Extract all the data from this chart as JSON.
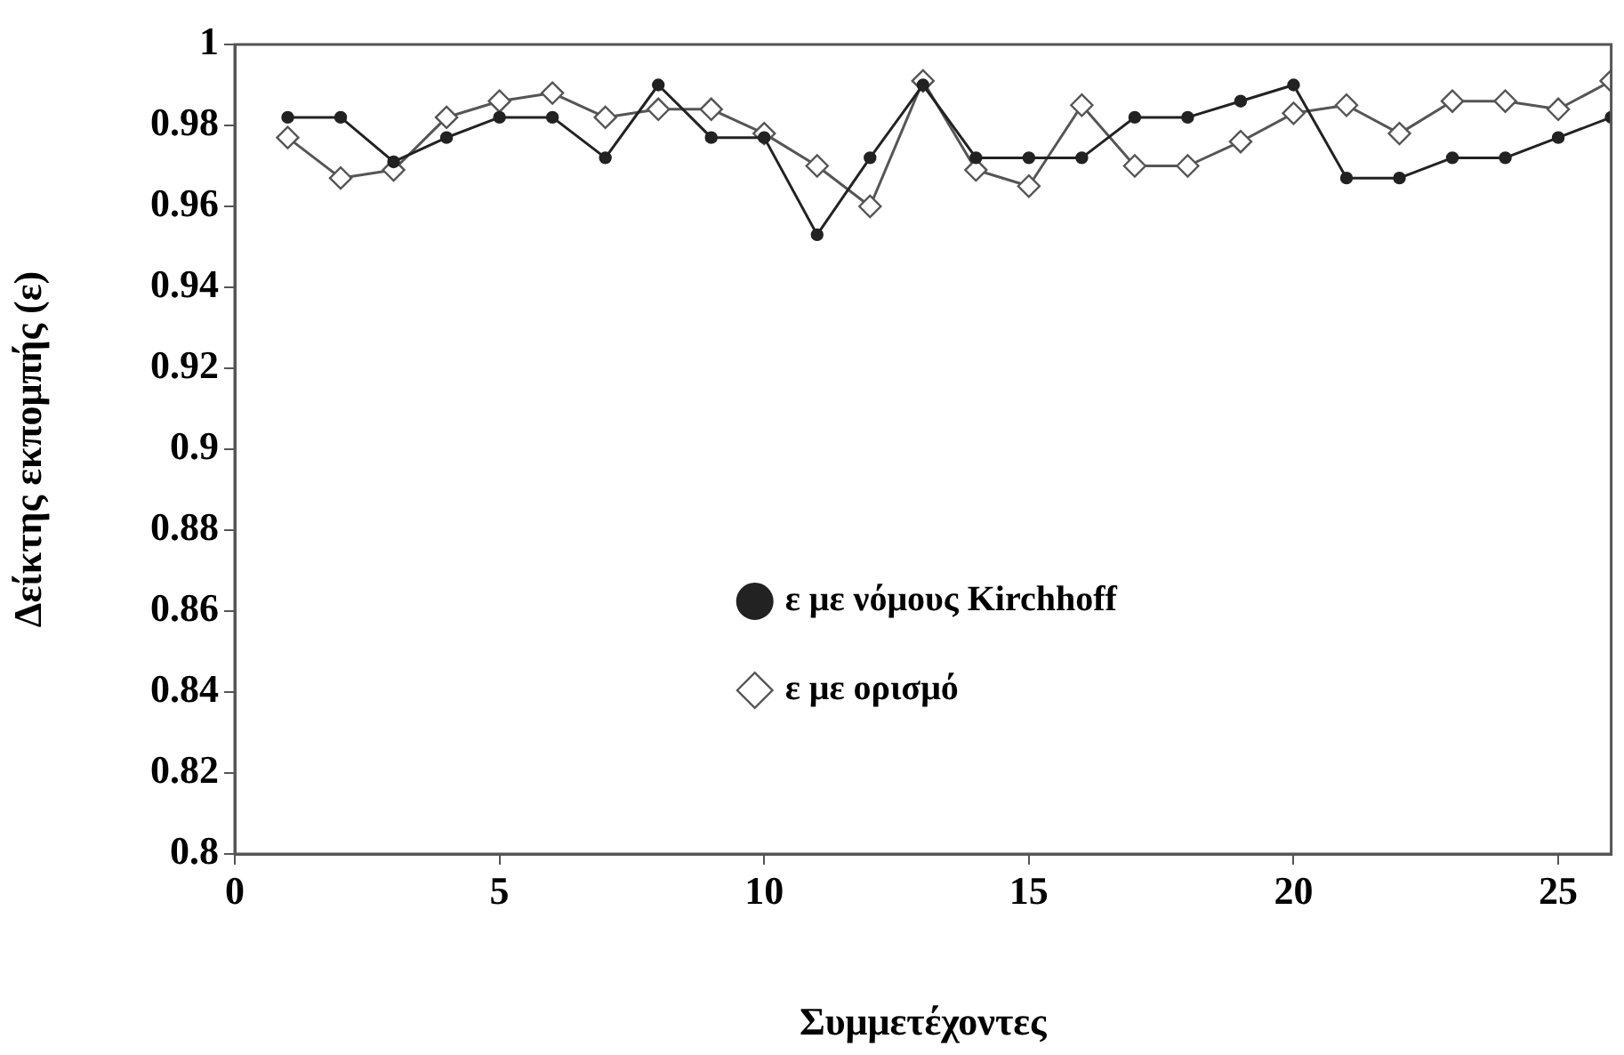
{
  "chart_data": {
    "type": "line",
    "xlabel": "Συμμετέχοντες",
    "ylabel": "Δείκτης εκπομπής (ε)",
    "x": [
      1,
      2,
      3,
      4,
      5,
      6,
      7,
      8,
      9,
      10,
      11,
      12,
      13,
      14,
      15,
      16,
      17,
      18,
      19,
      20,
      21,
      22,
      23,
      24,
      25,
      26
    ],
    "series": [
      {
        "name": "ε με ορισμό",
        "color": "#555555",
        "marker": "diamond",
        "values": [
          0.977,
          0.967,
          0.969,
          0.982,
          0.986,
          0.988,
          0.982,
          0.984,
          0.984,
          0.978,
          0.97,
          0.96,
          0.991,
          0.969,
          0.965,
          0.985,
          0.97,
          0.97,
          0.976,
          0.983,
          0.985,
          0.978,
          0.986,
          0.986,
          0.984,
          0.991
        ]
      },
      {
        "name": "ε με νόμους Kirchhoff",
        "color": "#222222",
        "marker": "circle",
        "values": [
          0.982,
          0.982,
          0.971,
          0.977,
          0.982,
          0.982,
          0.972,
          0.99,
          0.977,
          0.977,
          0.953,
          0.972,
          0.99,
          0.972,
          0.972,
          0.972,
          0.982,
          0.982,
          0.986,
          0.99,
          0.967,
          0.967,
          0.972,
          0.972,
          0.977,
          0.982
        ]
      }
    ],
    "xlim": [
      0,
      26
    ],
    "xticks": [
      0,
      5,
      10,
      15,
      20,
      25
    ],
    "ylim": [
      0.8,
      1
    ],
    "yticks": [
      0.8,
      0.82,
      0.84,
      0.86,
      0.88,
      0.9,
      0.92,
      0.94,
      0.96,
      0.98,
      1
    ],
    "grid": false,
    "legend": "center",
    "line_style": "solid"
  }
}
